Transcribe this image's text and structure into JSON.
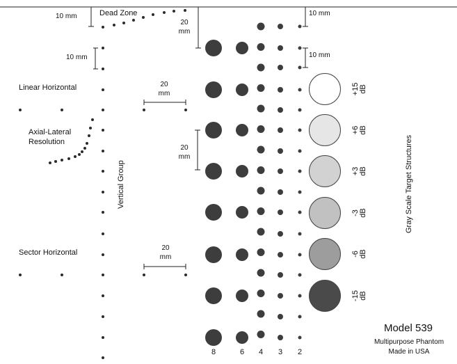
{
  "labels": {
    "dead_zone": "Dead Zone",
    "linear_horizontal": "Linear Horizontal",
    "axial_lateral_line1": "Axial-Lateral",
    "axial_lateral_line2": "Resolution",
    "vertical_group": "Vertical Group",
    "sector_horizontal": "Sector Horizontal",
    "gray_scale": "Gray Scale Target Structures"
  },
  "dimensions": {
    "top_left": "10 mm",
    "vertical_spacing": "10 mm",
    "top_right": "10 mm",
    "right_spacing": "10 mm",
    "dead_zone_depth_line1": "20",
    "dead_zone_depth_line2": "mm",
    "linear_width_line1": "20",
    "linear_width_line2": "mm",
    "row_spacing_line1": "20",
    "row_spacing_line2": "mm",
    "sector_width_line1": "20",
    "sector_width_line2": "mm"
  },
  "column_labels": [
    "8",
    "6",
    "4",
    "3",
    "2"
  ],
  "grayscale_targets": [
    {
      "value": "+15",
      "unit": "dB",
      "fill": "#ffffff"
    },
    {
      "value": "+6",
      "unit": "dB",
      "fill": "#e6e6e6"
    },
    {
      "value": "+3",
      "unit": "dB",
      "fill": "#d2d2d2"
    },
    {
      "value": "-3",
      "unit": "dB",
      "fill": "#c1c1c1"
    },
    {
      "value": "-6",
      "unit": "dB",
      "fill": "#9d9d9d"
    },
    {
      "value": "-15",
      "unit": "dB",
      "fill": "#4a4a4a"
    }
  ],
  "model": {
    "name": "Model 539",
    "line2": "Multipurpose Phantom",
    "line3": "Made in USA"
  },
  "colors": {
    "dot": "#2b2b2b",
    "large_target": "#3d3d3d"
  }
}
